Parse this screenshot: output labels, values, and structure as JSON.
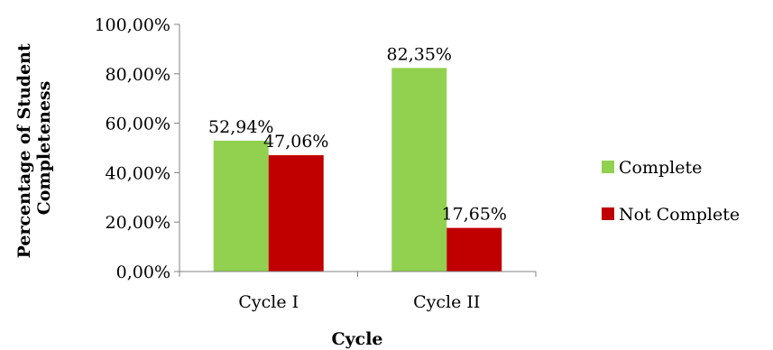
{
  "chart_data": {
    "type": "bar",
    "categories": [
      "Cycle I",
      "Cycle II"
    ],
    "series": [
      {
        "name": "Complete",
        "values": [
          52.94,
          82.35
        ],
        "labels": [
          "52,94%",
          "82,35%"
        ],
        "color": "#92D050"
      },
      {
        "name": "Not Complete",
        "values": [
          47.06,
          17.65
        ],
        "labels": [
          "47,06%",
          "17,65%"
        ],
        "color": "#C00000"
      }
    ],
    "xlabel": "Cycle",
    "ylabel": [
      "Percentage of Student",
      "Completeness"
    ],
    "ylim": [
      0,
      100
    ],
    "yticks": [
      0,
      20,
      40,
      60,
      80,
      100
    ],
    "ytick_labels": [
      "0,00%",
      "20,00%",
      "40,00%",
      "60,00%",
      "80,00%",
      "100,00%"
    ],
    "grid": false,
    "legend_position": "right",
    "axis_color": "#808080"
  }
}
